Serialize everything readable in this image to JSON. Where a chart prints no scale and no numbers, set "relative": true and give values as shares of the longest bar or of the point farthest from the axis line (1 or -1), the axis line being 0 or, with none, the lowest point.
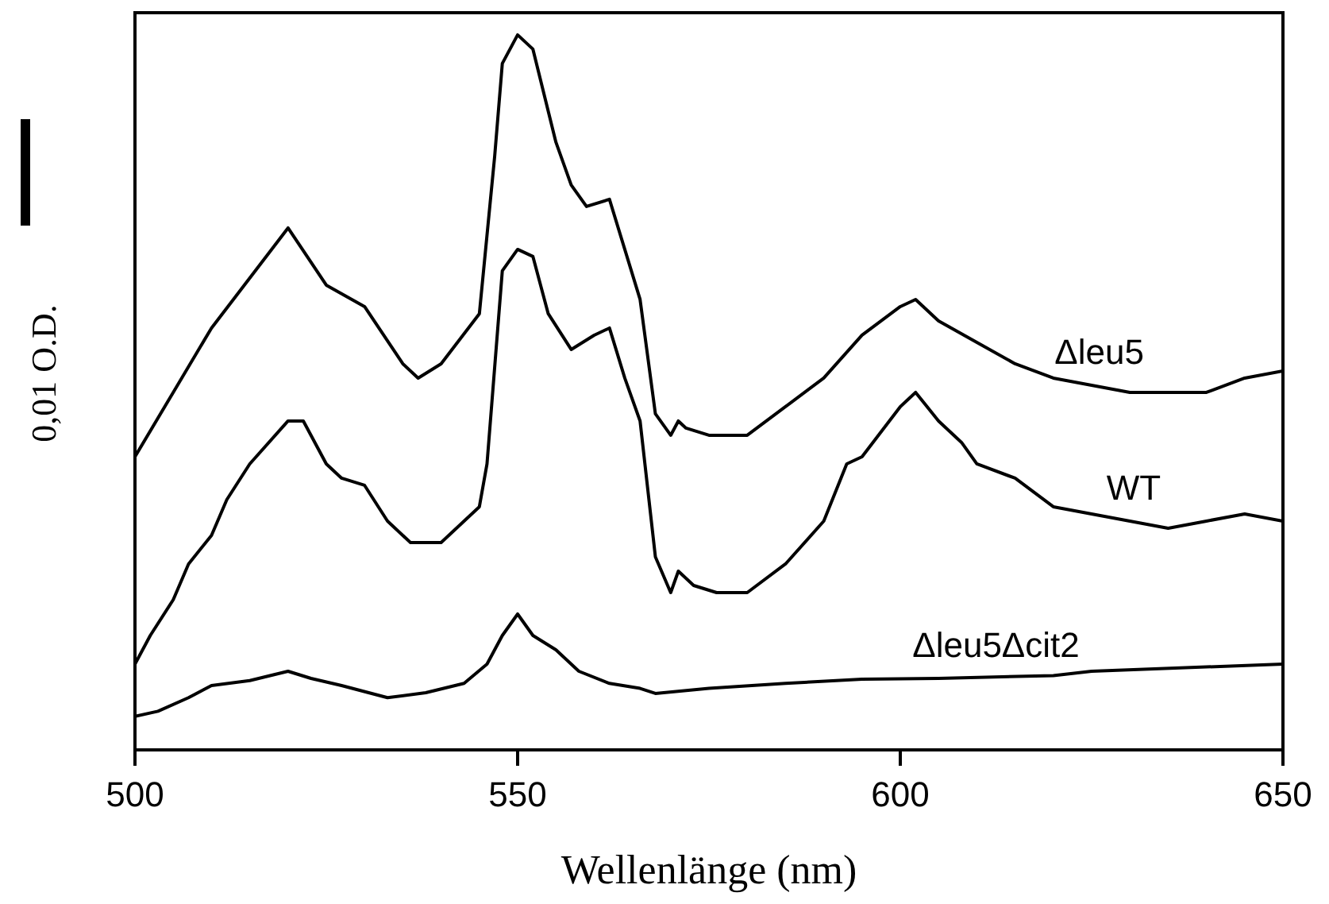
{
  "chart_data": {
    "type": "line",
    "relative": true,
    "xlabel": "Wellenlänge (nm)",
    "ylabel": "0,01 O.D.",
    "xlim": [
      500,
      650
    ],
    "xticks": [
      500,
      550,
      600,
      650
    ],
    "grid": false,
    "legend": false,
    "marker": "none",
    "line_style": "solid",
    "series": [
      {
        "name": "Δleu5",
        "color": "#000000",
        "x": [
          500,
          505,
          510,
          515,
          520,
          525,
          530,
          535,
          537,
          540,
          545,
          547,
          548,
          550,
          552,
          555,
          557,
          559,
          562,
          564,
          566,
          568,
          570,
          571,
          572,
          575,
          580,
          585,
          590,
          595,
          600,
          602,
          605,
          610,
          615,
          620,
          625,
          630,
          635,
          640,
          645,
          650
        ],
        "values": [
          0.41,
          0.5,
          0.59,
          0.66,
          0.73,
          0.65,
          0.62,
          0.54,
          0.52,
          0.54,
          0.61,
          0.83,
          0.96,
          1,
          0.98,
          0.85,
          0.79,
          0.76,
          0.77,
          0.7,
          0.63,
          0.47,
          0.44,
          0.46,
          0.45,
          0.44,
          0.44,
          0.48,
          0.52,
          0.58,
          0.62,
          0.63,
          0.6,
          0.57,
          0.54,
          0.52,
          0.51,
          0.5,
          0.5,
          0.5,
          0.52,
          0.53
        ]
      },
      {
        "name": "WT",
        "color": "#000000",
        "x": [
          500,
          502,
          505,
          507,
          510,
          512,
          515,
          520,
          522,
          525,
          527,
          530,
          533,
          536,
          540,
          545,
          546,
          548,
          550,
          552,
          554,
          557,
          560,
          562,
          564,
          566,
          568,
          570,
          571,
          573,
          576,
          580,
          585,
          590,
          593,
          595,
          600,
          602,
          605,
          608,
          610,
          615,
          620,
          625,
          630,
          635,
          640,
          645,
          650
        ],
        "values": [
          0.12,
          0.16,
          0.21,
          0.26,
          0.3,
          0.35,
          0.4,
          0.46,
          0.46,
          0.4,
          0.38,
          0.37,
          0.32,
          0.29,
          0.29,
          0.34,
          0.4,
          0.67,
          0.7,
          0.69,
          0.61,
          0.56,
          0.58,
          0.59,
          0.52,
          0.46,
          0.27,
          0.22,
          0.25,
          0.23,
          0.22,
          0.22,
          0.26,
          0.32,
          0.4,
          0.41,
          0.48,
          0.5,
          0.46,
          0.43,
          0.4,
          0.38,
          0.34,
          0.33,
          0.32,
          0.31,
          0.32,
          0.33,
          0.32
        ]
      },
      {
        "name": "Δleu5Δcit2",
        "color": "#000000",
        "x": [
          500,
          503,
          507,
          510,
          515,
          520,
          523,
          527,
          533,
          538,
          543,
          546,
          548,
          550,
          552,
          555,
          558,
          562,
          566,
          568,
          575,
          585,
          595,
          605,
          620,
          625,
          640,
          650
        ],
        "values": [
          0.047,
          0.054,
          0.073,
          0.09,
          0.097,
          0.11,
          0.1,
          0.09,
          0.073,
          0.08,
          0.093,
          0.12,
          0.16,
          0.19,
          0.16,
          0.14,
          0.11,
          0.093,
          0.086,
          0.079,
          0.086,
          0.093,
          0.099,
          0.1,
          0.104,
          0.11,
          0.116,
          0.12
        ]
      }
    ]
  }
}
